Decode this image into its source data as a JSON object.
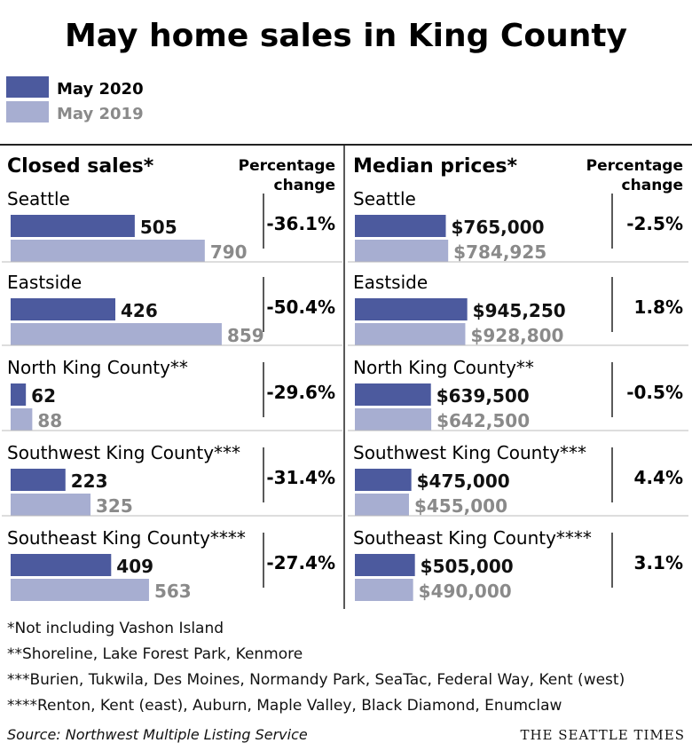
{
  "title": "May home sales in King County",
  "legend": [
    {
      "label": "May 2020",
      "color": "#4c5a9e"
    },
    {
      "label": "May 2019",
      "color": "#a7aed1"
    }
  ],
  "chart_data": [
    {
      "type": "bar",
      "title": "Closed sales*",
      "change_header": [
        "Percentage",
        "change"
      ],
      "categories": [
        "Seattle",
        "Eastside",
        "North King County**",
        "Southwest King County***",
        "Southeast King County****"
      ],
      "series": [
        {
          "name": "May 2020",
          "values": [
            505,
            426,
            62,
            223,
            409
          ],
          "labels": [
            "505",
            "426",
            "62",
            "223",
            "409"
          ]
        },
        {
          "name": "May 2019",
          "values": [
            790,
            859,
            88,
            325,
            563
          ],
          "labels": [
            "790",
            "859",
            "88",
            "325",
            "563"
          ]
        }
      ],
      "percent_change": [
        "-36.1%",
        "-50.4%",
        "-29.6%",
        "-31.4%",
        "-27.4%"
      ],
      "xlim": [
        0,
        900
      ]
    },
    {
      "type": "bar",
      "title": "Median prices*",
      "change_header": [
        "Percentage",
        "change"
      ],
      "categories": [
        "Seattle",
        "Eastside",
        "North King County**",
        "Southwest King County***",
        "Southeast King County****"
      ],
      "series": [
        {
          "name": "May 2020",
          "values": [
            765000,
            945250,
            639500,
            475000,
            505000
          ],
          "labels": [
            "$765,000",
            "$945,250",
            "$639,500",
            "$475,000",
            "$505,000"
          ]
        },
        {
          "name": "May 2019",
          "values": [
            784925,
            928800,
            642500,
            455000,
            490000
          ],
          "labels": [
            "$784,925",
            "$928,800",
            "$642,500",
            "$455,000",
            "$490,000"
          ]
        }
      ],
      "percent_change": [
        "-2.5%",
        "1.8%",
        "-0.5%",
        "4.4%",
        "3.1%"
      ],
      "xlim": [
        0,
        1000000
      ]
    }
  ],
  "footnotes": [
    "*Not including Vashon Island",
    "**Shoreline, Lake Forest Park, Kenmore",
    "***Burien, Tukwila, Des Moines, Normandy Park, SeaTac, Federal Way, Kent (west)",
    "****Renton, Kent (east), Auburn, Maple Valley, Black Diamond, Enumclaw"
  ],
  "source": "Source: Northwest Multiple Listing Service",
  "brand": "THE SEATTLE TIMES"
}
